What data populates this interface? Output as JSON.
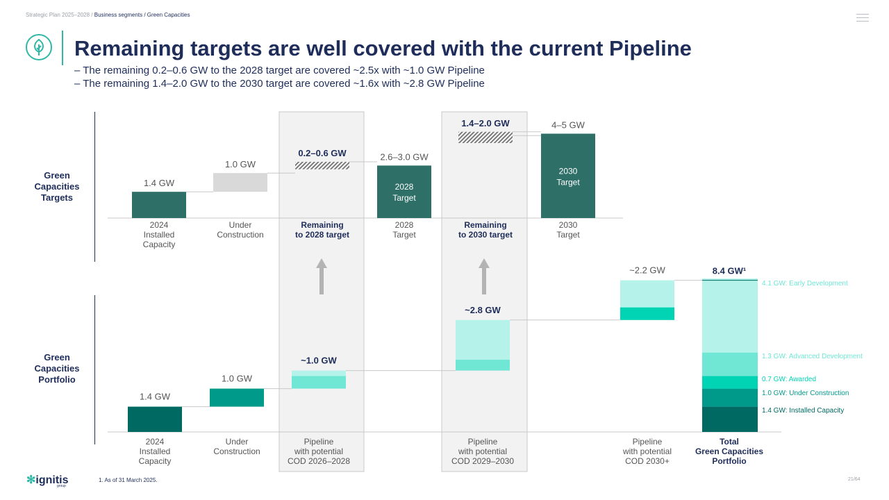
{
  "breadcrumb": {
    "root": "Strategic Plan 2025–2028 /",
    "current": "Business segments / Green Capacities"
  },
  "title": "Remaining targets are well covered with the current Pipeline",
  "bullets": [
    "–  The remaining 0.2–0.6 GW to the 2028 target are covered ~2.5x with ~1.0 GW Pipeline",
    "–  The remaining 1.4–2.0 GW to the 2030 target are covered ~1.6x with ~2.8 GW Pipeline"
  ],
  "row_labels": {
    "targets": [
      "Green",
      "Capacities",
      "Targets"
    ],
    "portfolio": [
      "Green",
      "Capacities",
      "Portfolio"
    ]
  },
  "colors": {
    "dark_teal": "#2e6f67",
    "installed": "#006a62",
    "under_construction": "#009a8a",
    "awarded": "#00d4b4",
    "advanced": "#70e6d4",
    "early": "#b4f2ea",
    "grey_bar": "#d9d9d9",
    "navy": "#1e2d5a",
    "panel": "#f2f2f2"
  },
  "chart_data": [
    {
      "type": "bar",
      "name": "targets-waterfall",
      "unit": "GW",
      "categories": [
        "2024\nInstalled\nCapacity",
        "Under\nConstruction",
        "Remaining\nto 2028 target",
        "2028\nTarget",
        "Remaining\nto 2030 target",
        "2030\nTarget"
      ],
      "bars": [
        {
          "label": "1.4 GW",
          "base": 0,
          "value": 1.4
        },
        {
          "label": "1.0 GW",
          "base": 1.4,
          "value": 1.0
        },
        {
          "label": "0.2–0.6 GW",
          "base": 2.4,
          "value_range": [
            0.2,
            0.6
          ]
        },
        {
          "label": "2.6–3.0 GW",
          "base": 0,
          "value_range": [
            2.6,
            3.0
          ],
          "inner_text": "2028\nTarget"
        },
        {
          "label": "1.4–2.0 GW",
          "base": 2.6,
          "value_range": [
            1.4,
            2.0
          ]
        },
        {
          "label": "4–5 GW",
          "base": 0,
          "value_range": [
            4,
            5
          ],
          "inner_text": "2030\nTarget"
        }
      ]
    },
    {
      "type": "bar",
      "name": "portfolio-waterfall",
      "unit": "GW",
      "categories": [
        "2024\nInstalled\nCapacity",
        "Under\nConstruction",
        "Pipeline\nwith potential\nCOD 2026–2028",
        "Pipeline\nwith potential\nCOD 2029–2030",
        "Pipeline\nwith potential\nCOD 2030+",
        "Total\nGreen Capacities\nPortfolio"
      ],
      "bars": [
        {
          "label": "1.4 GW",
          "base": 0,
          "value": 1.4
        },
        {
          "label": "1.0 GW",
          "base": 1.4,
          "value": 1.0
        },
        {
          "label": "~1.0 GW",
          "base": 2.4,
          "value": 1.0,
          "split": [
            0.7,
            0.3
          ]
        },
        {
          "label": "~2.8 GW",
          "base": 3.4,
          "value": 2.8,
          "split": [
            0.6,
            2.2
          ]
        },
        {
          "label": "~2.2 GW",
          "base": 6.2,
          "value": 2.2,
          "split": [
            0.7,
            1.5
          ]
        },
        {
          "label": "8.4 GW¹",
          "base": 0,
          "value": 8.4
        }
      ],
      "legend": [
        {
          "name": "4.1 GW: Early Development",
          "value": 4.1
        },
        {
          "name": "1.3 GW:  Advanced Development",
          "value": 1.3
        },
        {
          "name": "0.7 GW: Awarded",
          "value": 0.7
        },
        {
          "name": "1.0 GW: Under Construction",
          "value": 1.0
        },
        {
          "name": "1.4 GW: Installed Capacity",
          "value": 1.4
        }
      ]
    }
  ],
  "footnote": "1.  As of 31 March 2025.",
  "page": "21/64",
  "brand": {
    "name": "ignitis",
    "sub": "group"
  }
}
